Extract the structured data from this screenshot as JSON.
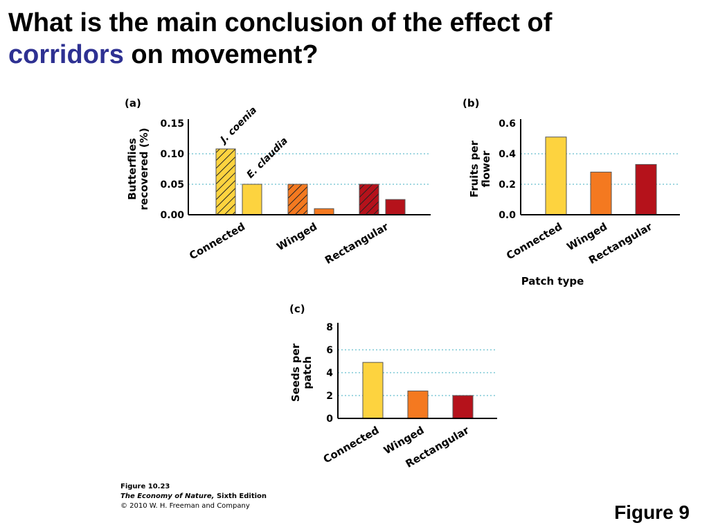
{
  "title": {
    "line1": "What is the main conclusion of the effect of",
    "highlight": "corridors",
    "line2_rest": " on movement?",
    "highlight_color": "#2e3192"
  },
  "chart_data": [
    {
      "panel": "(a)",
      "type": "bar",
      "categories": [
        "Connected",
        "Winged",
        "Rectangular"
      ],
      "series": [
        {
          "name": "J. coenia",
          "values": [
            0.108,
            0.05,
            0.05
          ],
          "pattern": "hatched"
        },
        {
          "name": "E. claudia",
          "values": [
            0.05,
            0.01,
            0.025
          ],
          "pattern": "solid"
        }
      ],
      "category_colors": [
        "#fdd33f",
        "#f47920",
        "#b5121b"
      ],
      "ylabel": "Butterflies recovered (%)",
      "yticks": [
        "0.00",
        "0.05",
        "0.10",
        "0.15"
      ],
      "ylim": [
        0,
        0.15
      ],
      "grid": "dotted"
    },
    {
      "panel": "(b)",
      "type": "bar",
      "categories": [
        "Connected",
        "Winged",
        "Rectangular"
      ],
      "values": [
        0.51,
        0.28,
        0.33
      ],
      "category_colors": [
        "#fdd33f",
        "#f47920",
        "#b5121b"
      ],
      "ylabel": "Fruits per flower",
      "xlabel": "Patch type",
      "yticks": [
        "0.0",
        "0.2",
        "0.4",
        "0.6"
      ],
      "ylim": [
        0,
        0.6
      ],
      "grid": "dotted"
    },
    {
      "panel": "(c)",
      "type": "bar",
      "categories": [
        "Connected",
        "Winged",
        "Rectangular"
      ],
      "values": [
        4.9,
        2.4,
        2.0
      ],
      "category_colors": [
        "#fdd33f",
        "#f47920",
        "#b5121b"
      ],
      "ylabel": "Seeds per patch",
      "yticks": [
        "0",
        "2",
        "4",
        "6",
        "8"
      ],
      "ylim": [
        0,
        8
      ],
      "grid": "dotted"
    }
  ],
  "caption": {
    "figure": "Figure 10.23",
    "book": "The Economy of Nature,",
    "edition": " Sixth Edition",
    "copyright": "© 2010 W. H. Freeman and Company"
  },
  "figure_label": "Figure 9"
}
